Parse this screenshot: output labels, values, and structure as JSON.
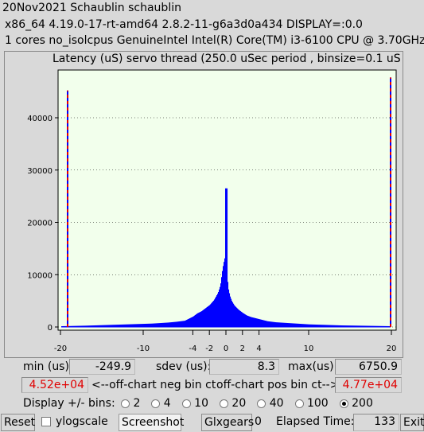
{
  "header": {
    "line1": "20Nov2021 Schaublin schaublin",
    "line2": "x86_64  4.19.0-17-rt-amd64  2.8.2-11-g6a3d0a434  DISPLAY=:0.0",
    "line3": "1 cores  no_isolcpus   GenuineIntel  Intel(R) Core(TM) i3-6100 CPU @ 3.70GHz"
  },
  "chart_data": {
    "type": "bar",
    "title": "Latency (uS) servo thread (250.0 uSec period , binsize=0.1 uS",
    "xlim": [
      -20,
      20
    ],
    "ylim": [
      0,
      48000
    ],
    "x_ticks": [
      -20,
      -10,
      -4,
      -2,
      0,
      2,
      4,
      10,
      20
    ],
    "y_ticks": [
      0,
      10000,
      20000,
      30000,
      40000
    ],
    "grid": "horizontal dotted",
    "series": [
      {
        "color": "#0000ff",
        "x": [
          -19.9,
          -17,
          -15,
          -13,
          -11,
          -9,
          -7,
          -6,
          -5,
          -4.5,
          -4,
          -3.5,
          -3,
          -2.5,
          -2,
          -1.5,
          -1,
          -0.7,
          -0.5,
          -0.3,
          -0.2,
          -0.1,
          0,
          0.1,
          0.2,
          0.3,
          0.5,
          0.7,
          1,
          1.5,
          2,
          2.5,
          3,
          4,
          5,
          6,
          8,
          10,
          12,
          14,
          16,
          18,
          19.9
        ],
        "values": [
          150,
          250,
          350,
          450,
          550,
          650,
          850,
          1000,
          1200,
          1600,
          2000,
          2600,
          3000,
          3600,
          4200,
          5100,
          6500,
          8000,
          10500,
          12500,
          12000,
          26500,
          12500,
          10000,
          8500,
          7000,
          5700,
          4900,
          4100,
          3300,
          2700,
          2200,
          1900,
          1500,
          1100,
          900,
          700,
          500,
          400,
          300,
          250,
          200,
          150
        ]
      }
    ],
    "offchart_marker_color": "#e00000",
    "offchart_neg_height": 45200,
    "offchart_pos_height": 47700
  },
  "stats": {
    "min_label": "min (us)",
    "min_value": "-249.9",
    "sdev_label": "sdev (us):",
    "sdev_value": "8.3",
    "max_label": "max(us)",
    "max_value": "6750.9",
    "neg_ct_value": "4.52e+04",
    "neg_ct_label": "<--off-chart neg bin ct",
    "pos_ct_label": "off-chart pos bin ct-->",
    "pos_ct_value": "4.77e+04"
  },
  "bins": {
    "label": "Display +/- bins:",
    "options": [
      "2",
      "4",
      "10",
      "20",
      "40",
      "100",
      "200"
    ],
    "selected": "200"
  },
  "toolbar": {
    "reset": "Reset",
    "ylogscale": "ylogscale",
    "screenshot": "Screenshot",
    "glxgears": "Glxgears",
    "glxgears_count": "0",
    "elapsed_label": "Elapsed Time:",
    "elapsed_value": "133",
    "exit": "Exit"
  }
}
